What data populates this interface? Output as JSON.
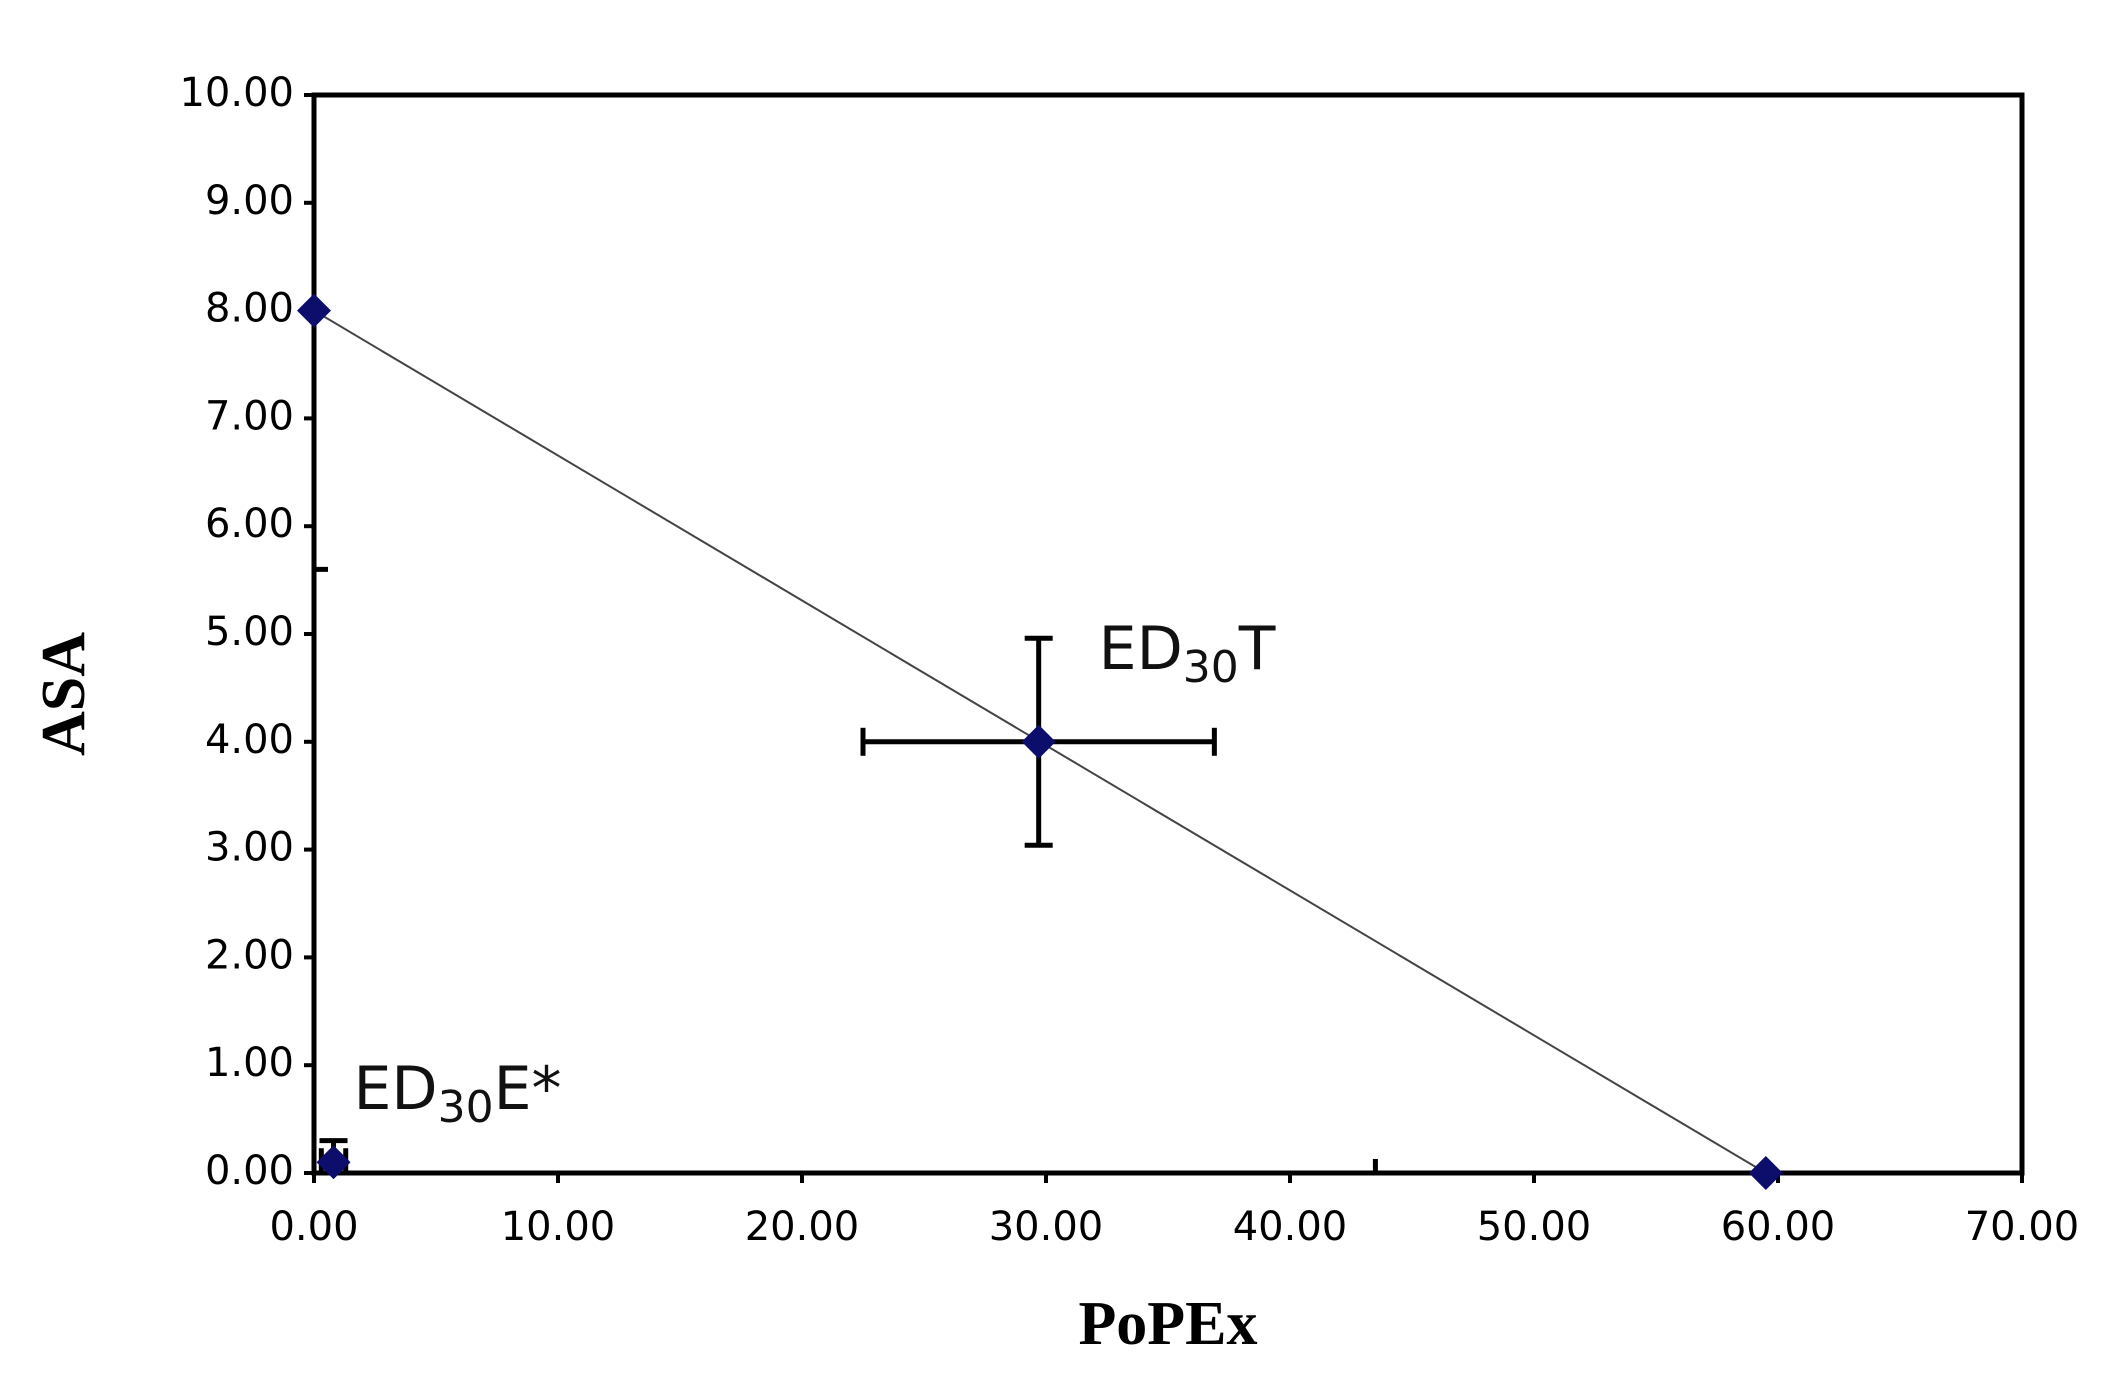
{
  "chart_data": {
    "type": "scatter",
    "x_label": "PoPEx",
    "y_label": "ASA",
    "xlim": [
      0,
      70
    ],
    "ylim": [
      0,
      10
    ],
    "xticks": [
      {
        "value": 0,
        "label": "0.00"
      },
      {
        "value": 10,
        "label": "10.00"
      },
      {
        "value": 20,
        "label": "20.00"
      },
      {
        "value": 30,
        "label": "30.00"
      },
      {
        "value": 40,
        "label": "40.00"
      },
      {
        "value": 50,
        "label": "50.00"
      },
      {
        "value": 60,
        "label": "60.00"
      },
      {
        "value": 70,
        "label": "70.00"
      }
    ],
    "yticks": [
      {
        "value": 0,
        "label": "0.00"
      },
      {
        "value": 1,
        "label": "1.00"
      },
      {
        "value": 2,
        "label": "2.00"
      },
      {
        "value": 3,
        "label": "3.00"
      },
      {
        "value": 4,
        "label": "4.00"
      },
      {
        "value": 5,
        "label": "5.00"
      },
      {
        "value": 6,
        "label": "6.00"
      },
      {
        "value": 7,
        "label": "7.00"
      },
      {
        "value": 8,
        "label": "8.00"
      },
      {
        "value": 9,
        "label": "9.00"
      },
      {
        "value": 10,
        "label": "10.00"
      }
    ],
    "series": [
      {
        "color": "#0d0d6b",
        "line": true,
        "x": [
          0,
          59.5
        ],
        "values": [
          8,
          0
        ],
        "x_errors": [
          0,
          16
        ],
        "y_errors": [
          2.4,
          0
        ]
      },
      {
        "color": "#0d0d6b",
        "line": false,
        "x": [
          29.7,
          0.8
        ],
        "values": [
          4,
          0.1
        ],
        "x_errors": [
          7.2,
          0.5
        ],
        "y_errors": [
          0.96,
          0.2
        ]
      }
    ],
    "annotations": [
      {
        "text": "ED",
        "sub": "30",
        "rest": "T"
      },
      {
        "text": "ED",
        "sub": "30",
        "rest": "E*"
      }
    ]
  }
}
